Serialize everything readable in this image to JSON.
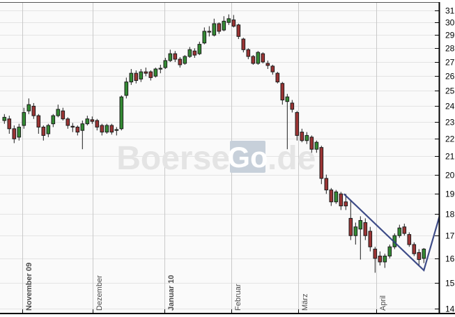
{
  "watermark": {
    "part1": "Boerse",
    "part2": "Go",
    "part3": ".de",
    "text_color": "#e4e4e4",
    "box_color": "#c7d0da",
    "box_text_color": "#ffffff"
  },
  "chart_data": {
    "type": "candlestick",
    "title": "",
    "xlabel": "",
    "ylabel": "",
    "y_axis": {
      "scale": "log",
      "ticks": [
        31,
        30,
        29,
        28,
        27,
        26,
        25,
        24,
        23,
        22,
        21,
        20,
        19,
        18,
        17,
        16,
        15,
        14
      ],
      "pixel_price_top": 31.67,
      "pixel_price_bottom": 13.84
    },
    "x_axis": {
      "months": [
        {
          "label": "November 09",
          "pos": 4.0,
          "bold": true
        },
        {
          "label": "Dezember",
          "pos": 18.43,
          "bold": false
        },
        {
          "label": "Januar 10",
          "pos": 33.14,
          "bold": true
        },
        {
          "label": "Februar",
          "pos": 46.86,
          "bold": false
        },
        {
          "label": "März",
          "pos": 60.57,
          "bold": false
        },
        {
          "label": "April",
          "pos": 76.57,
          "bold": false
        }
      ]
    },
    "candles_ohlc": [
      [
        23.1,
        23.5,
        22.9,
        23.3
      ],
      [
        23.2,
        23.4,
        22.3,
        22.6
      ],
      [
        22.6,
        22.8,
        21.75,
        22.0
      ],
      [
        22.1,
        22.9,
        21.9,
        22.7
      ],
      [
        22.8,
        23.9,
        22.6,
        23.6
      ],
      [
        23.7,
        24.5,
        23.5,
        24.1
      ],
      [
        24.0,
        24.2,
        23.2,
        23.4
      ],
      [
        23.4,
        23.5,
        22.3,
        22.7
      ],
      [
        22.7,
        22.8,
        21.9,
        22.2
      ],
      [
        22.3,
        22.9,
        22.1,
        22.8
      ],
      [
        22.9,
        23.5,
        22.7,
        23.4
      ],
      [
        23.4,
        24.1,
        23.3,
        23.8
      ],
      [
        23.7,
        23.9,
        23.1,
        23.2
      ],
      [
        23.2,
        23.3,
        22.6,
        22.8
      ],
      [
        22.75,
        22.95,
        22.4,
        22.7
      ],
      [
        22.7,
        22.8,
        22.2,
        22.4
      ],
      [
        22.5,
        23.1,
        21.4,
        22.9
      ],
      [
        22.9,
        23.4,
        22.8,
        23.2
      ],
      [
        23.15,
        23.35,
        22.9,
        23.05
      ],
      [
        23.1,
        23.2,
        22.5,
        22.7
      ],
      [
        22.8,
        22.9,
        22.2,
        22.4
      ],
      [
        22.4,
        22.9,
        22.3,
        22.8
      ],
      [
        22.8,
        22.9,
        22.25,
        22.4
      ],
      [
        22.5,
        22.7,
        22.2,
        22.55
      ],
      [
        22.6,
        24.7,
        22.5,
        24.6
      ],
      [
        24.7,
        25.9,
        24.5,
        25.6
      ],
      [
        25.6,
        26.5,
        25.4,
        26.2
      ],
      [
        26.2,
        26.4,
        25.5,
        25.7
      ],
      [
        25.8,
        26.5,
        25.6,
        26.3
      ],
      [
        26.3,
        26.6,
        26.0,
        26.2
      ],
      [
        26.3,
        26.4,
        25.7,
        25.9
      ],
      [
        26.0,
        26.6,
        25.9,
        26.5
      ],
      [
        26.5,
        26.8,
        26.2,
        26.55
      ],
      [
        26.6,
        27.3,
        26.5,
        27.1
      ],
      [
        27.1,
        27.9,
        27.0,
        27.6
      ],
      [
        27.6,
        27.8,
        27.0,
        27.2
      ],
      [
        27.2,
        27.35,
        26.6,
        26.8
      ],
      [
        26.9,
        27.5,
        26.8,
        27.4
      ],
      [
        27.4,
        28.1,
        27.3,
        27.9
      ],
      [
        27.8,
        28.0,
        27.3,
        27.5
      ],
      [
        27.6,
        28.5,
        27.5,
        28.3
      ],
      [
        28.4,
        29.6,
        28.3,
        29.3
      ],
      [
        29.3,
        29.7,
        28.9,
        29.25
      ],
      [
        29.0,
        30.3,
        28.9,
        29.9
      ],
      [
        29.9,
        30.0,
        29.1,
        29.3
      ],
      [
        29.4,
        30.5,
        29.3,
        30.1
      ],
      [
        30.0,
        30.65,
        29.8,
        30.3
      ],
      [
        30.2,
        30.6,
        29.6,
        29.7
      ],
      [
        29.8,
        29.9,
        28.7,
        28.9
      ],
      [
        28.7,
        28.8,
        27.7,
        27.9
      ],
      [
        27.9,
        28.0,
        27.2,
        27.4
      ],
      [
        27.4,
        27.5,
        26.8,
        26.9
      ],
      [
        26.9,
        27.8,
        26.8,
        27.7
      ],
      [
        27.6,
        27.7,
        26.9,
        27.0
      ],
      [
        26.9,
        27.1,
        26.5,
        26.75
      ],
      [
        26.7,
        26.8,
        26.1,
        26.3
      ],
      [
        26.2,
        26.3,
        25.5,
        25.6
      ],
      [
        25.5,
        25.6,
        24.1,
        24.4
      ],
      [
        24.3,
        24.8,
        21.4,
        24.6
      ],
      [
        24.2,
        24.4,
        23.6,
        23.8
      ],
      [
        23.6,
        23.7,
        21.9,
        22.2
      ],
      [
        22.4,
        22.6,
        21.8,
        21.9
      ],
      [
        21.9,
        22.4,
        21.7,
        22.2
      ],
      [
        22.1,
        22.2,
        21.2,
        21.4
      ],
      [
        21.4,
        21.9,
        21.2,
        21.8
      ],
      [
        21.5,
        21.6,
        19.5,
        19.8
      ],
      [
        19.8,
        20.0,
        19.0,
        19.2
      ],
      [
        19.2,
        19.3,
        18.4,
        18.6
      ],
      [
        18.6,
        19.2,
        18.5,
        19.1
      ],
      [
        19.0,
        19.1,
        18.2,
        18.4
      ],
      [
        18.6,
        19.0,
        18.2,
        18.4
      ],
      [
        17.8,
        18.7,
        16.8,
        17.0
      ],
      [
        17.0,
        17.6,
        16.6,
        17.4
      ],
      [
        17.3,
        17.9,
        15.95,
        17.7
      ],
      [
        17.6,
        17.8,
        16.8,
        17.0
      ],
      [
        17.2,
        17.4,
        16.3,
        16.5
      ],
      [
        16.4,
        16.5,
        15.4,
        16.0
      ],
      [
        16.1,
        16.3,
        15.7,
        15.85
      ],
      [
        15.85,
        16.2,
        15.6,
        16.1
      ],
      [
        16.1,
        16.6,
        16.0,
        16.5
      ],
      [
        16.5,
        17.1,
        16.4,
        17.0
      ],
      [
        17.0,
        17.5,
        16.9,
        17.35
      ],
      [
        17.4,
        17.55,
        17.0,
        17.1
      ],
      [
        17.05,
        17.15,
        16.5,
        16.6
      ],
      [
        16.6,
        16.7,
        16.1,
        16.2
      ],
      [
        16.25,
        16.4,
        15.7,
        15.95
      ],
      [
        16.0,
        16.45,
        15.8,
        16.4
      ]
    ],
    "trendline": {
      "points_idx_price": [
        [
          69.6,
          19.0
        ],
        [
          86.0,
          15.5
        ],
        [
          89.2,
          17.9
        ]
      ],
      "color": "#2e3d7e"
    },
    "colors": {
      "up": "#338a33",
      "down": "#9b3434",
      "outline": "#1c1c1c",
      "plot_bg": "#fafafa",
      "h_grid": "#e4e4e4",
      "v_grid": "#c9c9c9",
      "axis": "#000000",
      "top_border": "#555555",
      "tick_label": "#000000",
      "month_label": "#4d4d4d"
    },
    "legend": null,
    "grid": true
  }
}
